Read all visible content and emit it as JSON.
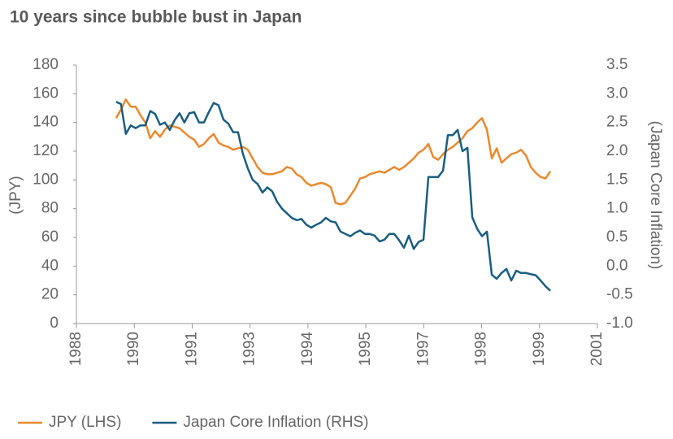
{
  "chart_data": {
    "type": "line",
    "title": "10 years since bubble bust in Japan",
    "y_label": "(JPY)",
    "y2_label": "(Japan Core Inflation)",
    "legend": "bottom",
    "x": [
      1989.46,
      1989.578,
      1989.696,
      1989.814,
      1989.932,
      1990.05,
      1990.168,
      1990.286,
      1990.404,
      1990.522,
      1990.64,
      1990.758,
      1990.876,
      1990.994,
      1991.112,
      1991.23,
      1991.348,
      1991.466,
      1991.584,
      1991.702,
      1991.82,
      1991.938,
      1992.056,
      1992.174,
      1992.292,
      1992.41,
      1992.528,
      1992.646,
      1992.764,
      1992.882,
      1993.0,
      1993.118,
      1993.236,
      1993.354,
      1993.472,
      1993.59,
      1993.708,
      1993.826,
      1993.944,
      1994.062,
      1994.18,
      1994.298,
      1994.416,
      1994.534,
      1994.652,
      1994.77,
      1994.888,
      1995.006,
      1995.124,
      1995.242,
      1995.36,
      1995.478,
      1995.596,
      1995.714,
      1995.832,
      1995.95,
      1996.068,
      1996.186,
      1996.304,
      1996.422,
      1996.54,
      1996.658,
      1996.776,
      1996.894,
      1997.012,
      1997.13,
      1997.248,
      1997.366,
      1997.484,
      1997.602,
      1997.72,
      1997.838,
      1997.956,
      1998.074,
      1998.192,
      1998.31,
      1998.428,
      1998.546,
      1998.664,
      1998.782,
      1998.9,
      1999.018,
      1999.136,
      1999.254,
      1999.372,
      1999.49,
      1999.608,
      1999.726,
      1999.844,
      1999.962
    ],
    "xlim": [
      1988.5,
      2001.1
    ],
    "xticks": [
      {
        "value": 1988.5,
        "label": "1988"
      },
      {
        "value": 1989.9,
        "label": "1990"
      },
      {
        "value": 1991.3,
        "label": "1991"
      },
      {
        "value": 1992.7,
        "label": "1993"
      },
      {
        "value": 1994.1,
        "label": "1994"
      },
      {
        "value": 1995.5,
        "label": "1995"
      },
      {
        "value": 1996.9,
        "label": "1997"
      },
      {
        "value": 1998.3,
        "label": "1998"
      },
      {
        "value": 1999.7,
        "label": "1999"
      },
      {
        "value": 2001.1,
        "label": "2001"
      }
    ],
    "ylim": [
      0,
      180
    ],
    "yticks": [
      0,
      20,
      40,
      60,
      80,
      100,
      120,
      140,
      160,
      180
    ],
    "y2lim": [
      -1,
      3.5
    ],
    "y2ticks": [
      {
        "value": -1,
        "label": "-1.0"
      },
      -0.5,
      {
        "value": 0,
        "label": "0.0"
      },
      0.5,
      {
        "value": 1,
        "label": "1.0"
      },
      1.5,
      {
        "value": 2,
        "label": "2.0"
      },
      2.5,
      {
        "value": 3,
        "label": "3.0"
      },
      3.5
    ],
    "series": [
      {
        "name": "JPY (LHS)",
        "color": "#e8892e",
        "axis": "y",
        "values": [
          143,
          149,
          156,
          151,
          151,
          145,
          140,
          129,
          134,
          130,
          135,
          138,
          137,
          136,
          133,
          130,
          128,
          123,
          125,
          129,
          132,
          126,
          124,
          123,
          121,
          122,
          123,
          121,
          115,
          109,
          105,
          104,
          104,
          105,
          106,
          109,
          108,
          104,
          102,
          98,
          96,
          97,
          98,
          97,
          95,
          84,
          83,
          84,
          89,
          94,
          101,
          102,
          104,
          105,
          106,
          105,
          107,
          109,
          107,
          109,
          112,
          115,
          119,
          121,
          125,
          116,
          114,
          118,
          121,
          123,
          126,
          129,
          134,
          136,
          140,
          143,
          135,
          115,
          122,
          112,
          115,
          118,
          119,
          121,
          117,
          109,
          105,
          102,
          101,
          106
        ]
      },
      {
        "name": "Japan Core Inflation (RHS)",
        "color": "#1a5e80",
        "axis": "y2",
        "values": [
          2.86,
          2.82,
          2.3,
          2.45,
          2.4,
          2.45,
          2.45,
          2.7,
          2.65,
          2.46,
          2.5,
          2.37,
          2.54,
          2.66,
          2.5,
          2.66,
          2.68,
          2.5,
          2.5,
          2.68,
          2.84,
          2.8,
          2.55,
          2.48,
          2.33,
          2.33,
          1.95,
          1.7,
          1.5,
          1.43,
          1.28,
          1.37,
          1.3,
          1.12,
          1.0,
          0.92,
          0.84,
          0.8,
          0.82,
          0.72,
          0.67,
          0.72,
          0.76,
          0.84,
          0.78,
          0.76,
          0.6,
          0.56,
          0.52,
          0.58,
          0.62,
          0.56,
          0.56,
          0.53,
          0.43,
          0.46,
          0.56,
          0.56,
          0.45,
          0.32,
          0.53,
          0.3,
          0.42,
          0.46,
          1.55,
          1.55,
          1.55,
          1.66,
          2.28,
          2.28,
          2.37,
          2.0,
          2.06,
          0.85,
          0.65,
          0.52,
          0.6,
          -0.15,
          -0.22,
          -0.12,
          -0.05,
          -0.25,
          -0.08,
          -0.12,
          -0.12,
          -0.14,
          -0.16,
          -0.25,
          -0.35,
          -0.43
        ]
      }
    ]
  }
}
